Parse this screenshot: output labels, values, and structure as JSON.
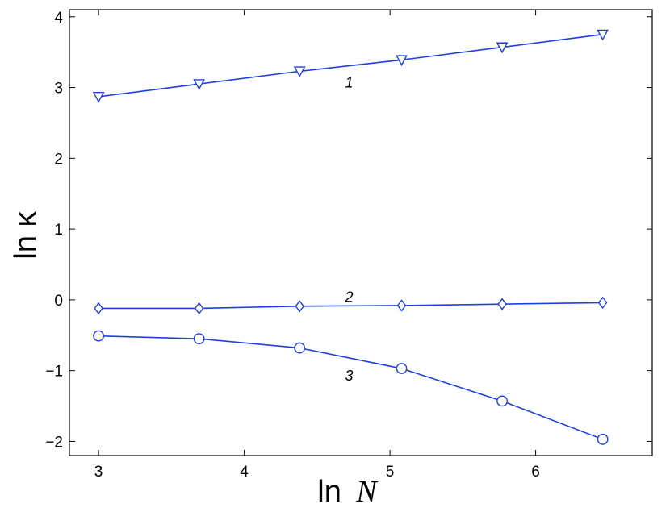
{
  "chart_data": {
    "type": "line",
    "title": "",
    "xlabel": "ln N",
    "xlabel_parts": [
      "ln",
      "N"
    ],
    "ylabel": "ln κ",
    "xlim": [
      2.8,
      6.8
    ],
    "ylim": [
      -2.2,
      4.1
    ],
    "xticks": [
      3,
      4,
      5,
      6
    ],
    "yticks": [
      -2,
      -1,
      0,
      1,
      2,
      3,
      4
    ],
    "ytick_labels": [
      "−2",
      "−1",
      "0",
      "1",
      "2",
      "3",
      "4"
    ],
    "grid": false,
    "line_color": "#1f3fe0",
    "x": [
      3.0,
      3.69,
      4.38,
      5.08,
      5.77,
      6.46
    ],
    "series": [
      {
        "label": "1",
        "marker": "triangle-down",
        "values": [
          2.87,
          3.05,
          3.23,
          3.39,
          3.57,
          3.75
        ],
        "label_position": [
          4.72,
          3.07
        ]
      },
      {
        "label": "2",
        "marker": "diamond",
        "values": [
          -0.12,
          -0.12,
          -0.09,
          -0.08,
          -0.06,
          -0.04
        ],
        "label_position": [
          4.72,
          0.04
        ]
      },
      {
        "label": "3",
        "marker": "circle",
        "values": [
          -0.51,
          -0.55,
          -0.68,
          -0.97,
          -1.43,
          -1.97
        ],
        "label_position": [
          4.72,
          -1.07
        ]
      }
    ]
  }
}
